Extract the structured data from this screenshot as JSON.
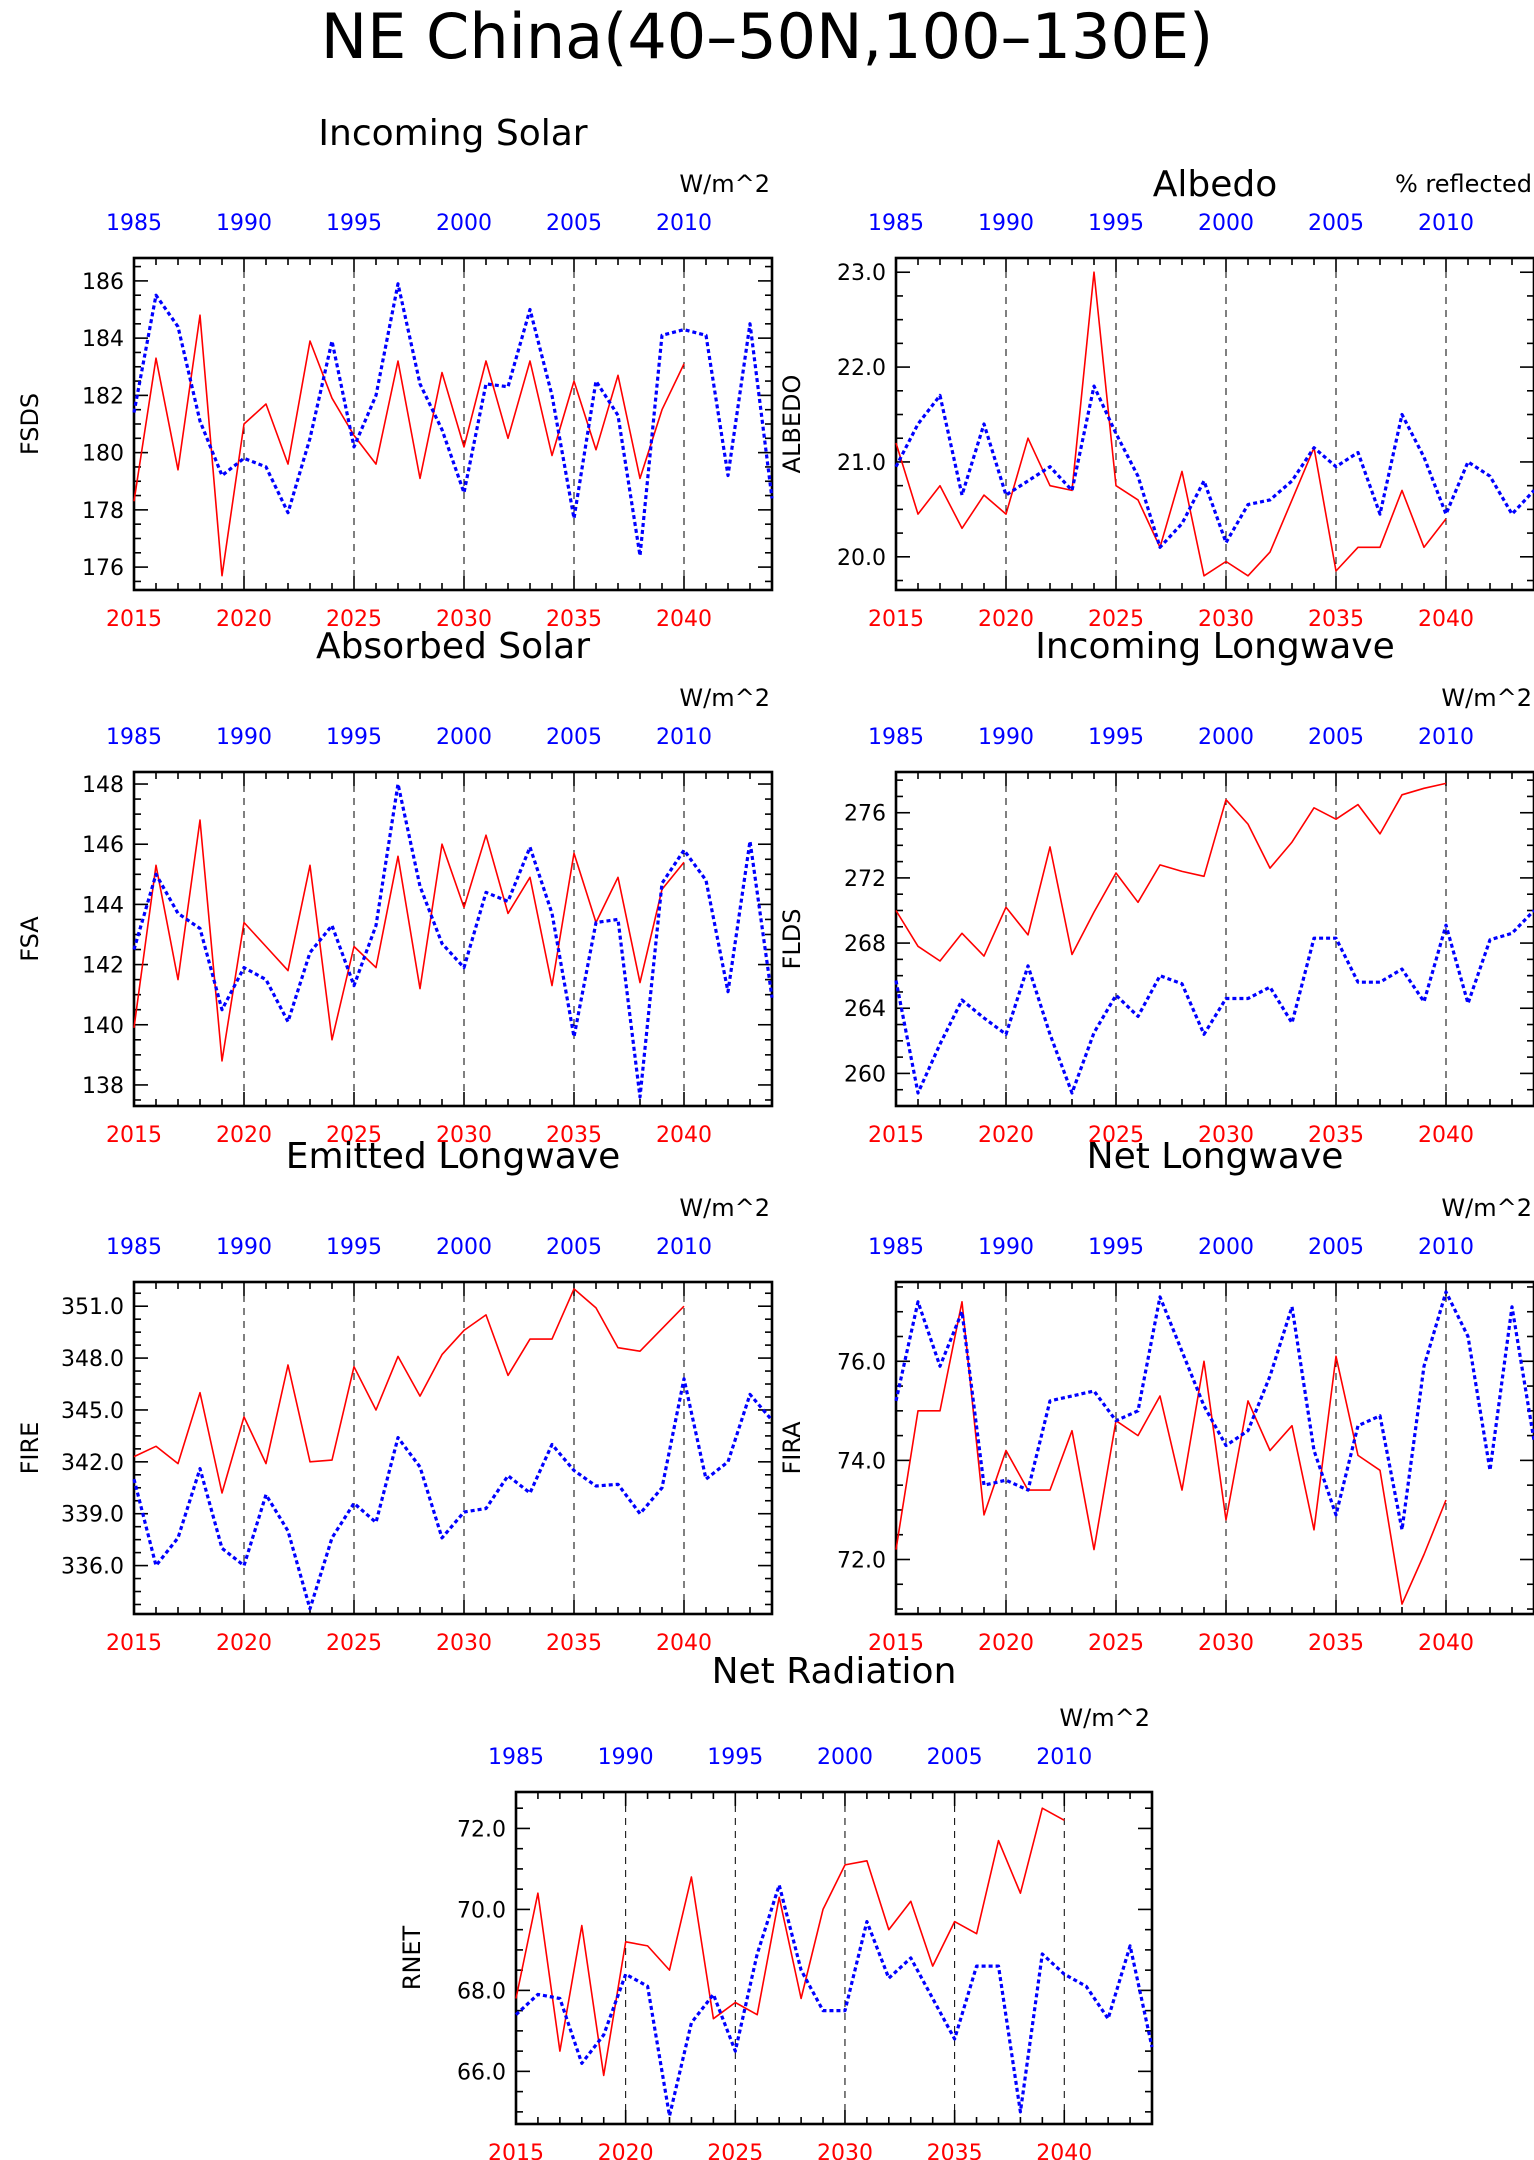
{
  "title": "NE China(40–50N,100–130E)",
  "colors": {
    "bottom_axis": "#ff0000",
    "top_axis": "#0000ff",
    "frame": "#000000",
    "grid": "#000000"
  },
  "axes": {
    "bottom": {
      "min": 2015,
      "max": 2044,
      "ticks": [
        "2015",
        "2020",
        "2025",
        "2030",
        "2035",
        "2040"
      ]
    },
    "top": {
      "min": 1985,
      "max": 2014,
      "ticks": [
        "1985",
        "1990",
        "1995",
        "2000",
        "2005",
        "2010"
      ]
    },
    "grid_x": [
      2020,
      2025,
      2030,
      2035,
      2040
    ]
  },
  "chart_data": [
    {
      "type": "line",
      "title": "Incoming Solar",
      "units": "W/m^2",
      "ylabel": "FSDS",
      "ylim": [
        175.2,
        186.8
      ],
      "yticks": [
        "176",
        "178",
        "180",
        "182",
        "184",
        "186"
      ],
      "series": [
        {
          "values": [
            178.3,
            183.3,
            179.4,
            184.8,
            175.7,
            181.0,
            181.7,
            179.6,
            183.9,
            181.9,
            180.6,
            179.6,
            183.2,
            179.1,
            182.8,
            180.2,
            183.2,
            180.5,
            183.2,
            179.9,
            182.5,
            180.1,
            182.7,
            179.1,
            181.5,
            183.1
          ]
        },
        {
          "values": [
            181.4,
            185.5,
            184.4,
            181.1,
            179.2,
            179.8,
            179.5,
            177.9,
            180.5,
            183.9,
            180.2,
            182.0,
            185.9,
            182.4,
            180.8,
            178.6,
            182.4,
            182.3,
            185.0,
            182.0,
            177.7,
            182.5,
            181.3,
            176.4,
            184.1,
            184.3,
            184.1,
            179.2,
            184.5,
            178.4
          ]
        }
      ]
    },
    {
      "type": "line",
      "title": "Albedo",
      "units": "% reflected",
      "ylabel": "ALBEDO",
      "ylim": [
        19.65,
        23.15
      ],
      "yticks": [
        "20.0",
        "21.0",
        "22.0",
        "23.0"
      ],
      "series": [
        {
          "values": [
            21.2,
            20.45,
            20.75,
            20.3,
            20.65,
            20.45,
            21.25,
            20.75,
            20.7,
            23.0,
            20.75,
            20.6,
            20.1,
            20.9,
            19.8,
            19.95,
            19.8,
            20.05,
            20.6,
            21.15,
            19.85,
            20.1,
            20.1,
            20.7,
            20.1,
            20.4
          ]
        },
        {
          "values": [
            20.95,
            21.4,
            21.7,
            20.65,
            21.4,
            20.65,
            20.8,
            20.95,
            20.7,
            21.8,
            21.3,
            20.85,
            20.1,
            20.35,
            20.8,
            20.15,
            20.55,
            20.6,
            20.8,
            21.15,
            20.95,
            21.1,
            20.45,
            21.5,
            21.05,
            20.45,
            21.0,
            20.85,
            20.45,
            20.7
          ]
        }
      ]
    },
    {
      "type": "line",
      "title": "Absorbed Solar",
      "units": "W/m^2",
      "ylabel": "FSA",
      "ylim": [
        137.3,
        148.4
      ],
      "yticks": [
        "138",
        "140",
        "142",
        "144",
        "146",
        "148"
      ],
      "series": [
        {
          "values": [
            139.9,
            145.3,
            141.5,
            146.8,
            138.8,
            143.4,
            142.6,
            141.8,
            145.3,
            139.5,
            142.6,
            141.9,
            145.6,
            141.2,
            146.0,
            143.9,
            146.3,
            143.7,
            144.9,
            141.3,
            145.7,
            143.4,
            144.9,
            141.4,
            144.5,
            145.4
          ]
        },
        {
          "values": [
            142.5,
            145.0,
            143.7,
            143.2,
            140.5,
            141.9,
            141.5,
            140.1,
            142.4,
            143.3,
            141.3,
            143.3,
            148.0,
            144.6,
            142.7,
            141.9,
            144.4,
            144.1,
            145.9,
            143.7,
            139.6,
            143.4,
            143.5,
            137.6,
            144.7,
            145.8,
            144.8,
            141.1,
            146.1,
            140.9
          ]
        }
      ]
    },
    {
      "type": "line",
      "title": "Incoming Longwave",
      "units": "W/m^2",
      "ylabel": "FLDS",
      "ylim": [
        258.0,
        278.5
      ],
      "yticks": [
        "260",
        "264",
        "268",
        "272",
        "276"
      ],
      "series": [
        {
          "values": [
            270.0,
            267.8,
            266.9,
            268.6,
            267.2,
            270.2,
            268.5,
            273.9,
            267.3,
            269.9,
            272.3,
            270.5,
            272.8,
            272.4,
            272.1,
            276.8,
            275.3,
            272.6,
            274.2,
            276.3,
            275.6,
            276.5,
            274.7,
            277.1,
            277.5,
            277.8
          ]
        },
        {
          "values": [
            265.7,
            258.8,
            261.8,
            264.5,
            263.4,
            262.4,
            266.6,
            262.4,
            258.8,
            262.5,
            264.8,
            263.5,
            266.0,
            265.5,
            262.4,
            264.6,
            264.6,
            265.3,
            263.1,
            268.3,
            268.3,
            265.6,
            265.6,
            266.4,
            264.4,
            269.1,
            264.3,
            268.2,
            268.6,
            270.0
          ]
        }
      ]
    },
    {
      "type": "line",
      "title": "Emitted Longwave",
      "units": "W/m^2",
      "ylabel": "FIRE",
      "ylim": [
        333.2,
        352.4
      ],
      "yticks": [
        "336.0",
        "339.0",
        "342.0",
        "345.0",
        "348.0",
        "351.0"
      ],
      "series": [
        {
          "values": [
            342.3,
            342.9,
            341.9,
            346.0,
            340.2,
            344.6,
            341.9,
            347.6,
            342.0,
            342.1,
            347.5,
            345.0,
            348.1,
            345.8,
            348.2,
            349.6,
            350.5,
            347.0,
            349.1,
            349.1,
            352.0,
            350.9,
            348.6,
            348.4,
            349.7,
            351.0
          ]
        },
        {
          "values": [
            341.0,
            336.0,
            337.6,
            341.6,
            337.0,
            336.0,
            340.1,
            338.0,
            333.5,
            337.6,
            339.6,
            338.5,
            343.4,
            341.7,
            337.6,
            339.1,
            339.3,
            341.2,
            340.2,
            343.0,
            341.5,
            340.6,
            340.7,
            339.0,
            340.5,
            346.8,
            341.0,
            342.0,
            345.9,
            344.4
          ]
        }
      ]
    },
    {
      "type": "line",
      "title": "Net Longwave",
      "units": "W/m^2",
      "ylabel": "FIRA",
      "ylim": [
        70.9,
        77.6
      ],
      "yticks": [
        "72.0",
        "74.0",
        "76.0"
      ],
      "series": [
        {
          "values": [
            72.2,
            75.0,
            75.0,
            77.2,
            72.9,
            74.2,
            73.4,
            73.4,
            74.6,
            72.2,
            74.8,
            74.5,
            75.3,
            73.4,
            76.0,
            72.8,
            75.2,
            74.2,
            74.7,
            72.6,
            76.1,
            74.1,
            73.8,
            71.1,
            72.1,
            73.2
          ]
        },
        {
          "values": [
            75.2,
            77.2,
            75.9,
            77.0,
            73.5,
            73.6,
            73.4,
            75.2,
            75.3,
            75.4,
            74.8,
            75.0,
            77.3,
            76.2,
            75.1,
            74.3,
            74.6,
            75.7,
            77.1,
            74.2,
            72.9,
            74.7,
            74.9,
            72.6,
            75.9,
            77.4,
            76.5,
            73.8,
            77.1,
            74.4
          ]
        }
      ]
    },
    {
      "type": "line",
      "title": "Net Radiation",
      "units": "W/m^2",
      "ylabel": "RNET",
      "ylim": [
        64.7,
        72.9
      ],
      "yticks": [
        "66.0",
        "68.0",
        "70.0",
        "72.0"
      ],
      "series": [
        {
          "values": [
            67.8,
            70.4,
            66.5,
            69.6,
            65.9,
            69.2,
            69.1,
            68.5,
            70.8,
            67.3,
            67.7,
            67.4,
            70.3,
            67.8,
            70.0,
            71.1,
            71.2,
            69.5,
            70.2,
            68.6,
            69.7,
            69.4,
            71.7,
            70.4,
            72.5,
            72.2
          ]
        },
        {
          "values": [
            67.4,
            67.9,
            67.8,
            66.2,
            66.9,
            68.4,
            68.1,
            64.9,
            67.2,
            67.9,
            66.5,
            68.9,
            70.6,
            68.5,
            67.5,
            67.5,
            69.7,
            68.3,
            68.8,
            67.8,
            66.8,
            68.6,
            68.6,
            65.0,
            68.9,
            68.4,
            68.1,
            67.3,
            69.1,
            66.6
          ]
        }
      ]
    }
  ]
}
